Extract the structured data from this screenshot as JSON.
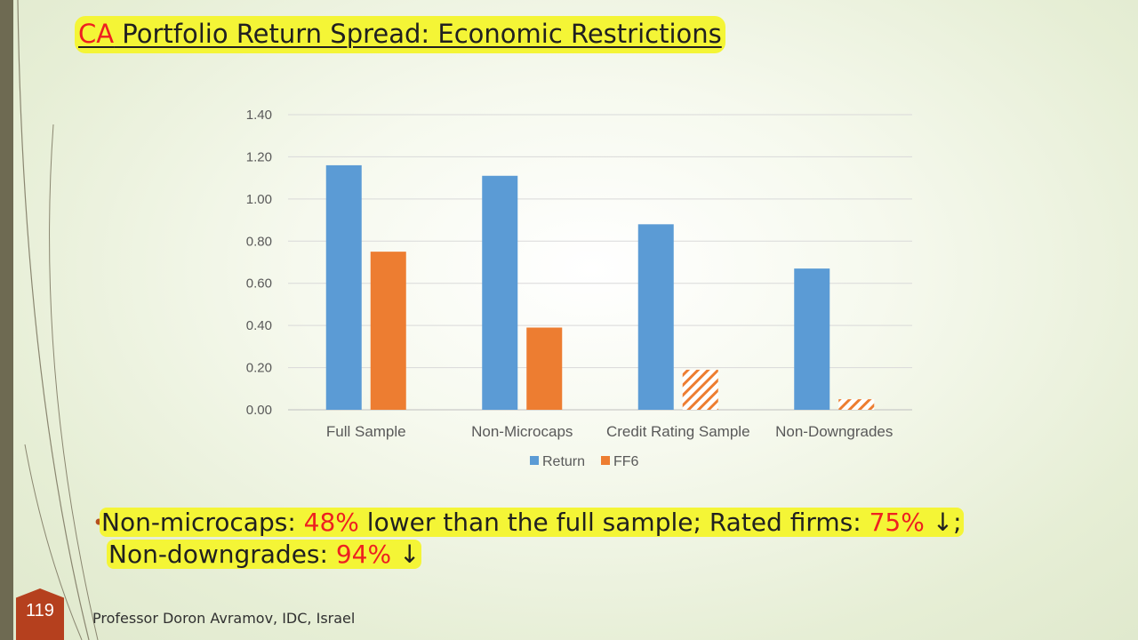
{
  "title": {
    "prefix": "CA",
    "rest": " Portfolio Return Spread: Economic Restrictions"
  },
  "colors": {
    "return": "#5b9bd5",
    "ff6": "#ed7d31",
    "highlight": "#f4f536",
    "accent_red": "#ee2020"
  },
  "chart_data": {
    "type": "bar",
    "categories": [
      "Full Sample",
      "Non-Microcaps",
      "Credit Rating Sample",
      "Non-Downgrades"
    ],
    "series": [
      {
        "name": "Return",
        "values": [
          1.16,
          1.11,
          0.88,
          0.67
        ],
        "color": "#5b9bd5",
        "hatched": [
          false,
          false,
          false,
          false
        ]
      },
      {
        "name": "FF6",
        "values": [
          0.75,
          0.39,
          0.19,
          0.05
        ],
        "color": "#ed7d31",
        "hatched": [
          false,
          false,
          true,
          true
        ]
      }
    ],
    "yticks": [
      "0.00",
      "0.20",
      "0.40",
      "0.60",
      "0.80",
      "1.00",
      "1.20",
      "1.40"
    ],
    "ylim": [
      0,
      1.4
    ],
    "grid": true,
    "legend_position": "bottom"
  },
  "bullet": {
    "p1": "Non-microcaps: ",
    "v1": "48%",
    "p2": " lower than the full sample; Rated firms: ",
    "v2": "75%",
    "a1": " ↓;",
    "p3": "Non-downgrades: ",
    "v3": "94%",
    "a2": " ↓"
  },
  "page_number": "119",
  "footer": "Professor Doron Avramov, IDC, Israel"
}
